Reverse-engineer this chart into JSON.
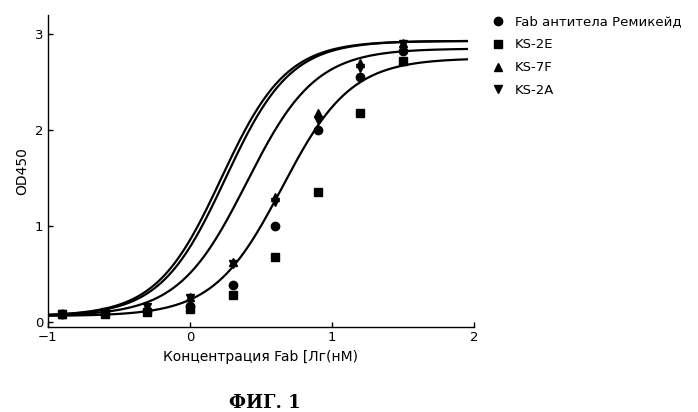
{
  "title": "ФИГ. 1",
  "xlabel": "Концентрация Fab [Лг(нМ)",
  "ylabel": "OD450",
  "xlim": [
    -1,
    2
  ],
  "ylim": [
    -0.05,
    3.2
  ],
  "xticks": [
    -1,
    0,
    1,
    2
  ],
  "yticks": [
    0,
    1,
    2,
    3
  ],
  "series": [
    {
      "label": "Fab антитела Ремикейд",
      "marker": "o",
      "color": "#000000",
      "ec50_lg": 0.4,
      "hill": 1.8,
      "ymax": 2.85,
      "ymin": 0.06,
      "data_x": [
        -0.9,
        -0.6,
        -0.3,
        0.0,
        0.3,
        0.6,
        0.9,
        1.2,
        1.5
      ],
      "data_y": [
        0.08,
        0.09,
        0.11,
        0.16,
        0.38,
        1.0,
        2.0,
        2.55,
        2.82
      ]
    },
    {
      "label": "KS-2E",
      "marker": "s",
      "color": "#000000",
      "ec50_lg": 0.65,
      "hill": 1.8,
      "ymax": 2.75,
      "ymin": 0.06,
      "data_x": [
        -0.9,
        -0.6,
        -0.3,
        0.0,
        0.3,
        0.6,
        0.9,
        1.2,
        1.5
      ],
      "data_y": [
        0.08,
        0.08,
        0.1,
        0.13,
        0.28,
        0.68,
        1.35,
        2.18,
        2.72
      ]
    },
    {
      "label": "KS-7F",
      "marker": "^",
      "color": "#000000",
      "ec50_lg": 0.25,
      "hill": 1.9,
      "ymax": 2.93,
      "ymin": 0.06,
      "data_x": [
        -0.9,
        -0.6,
        -0.3,
        0.0,
        0.3,
        0.6,
        0.9,
        1.2,
        1.5
      ],
      "data_y": [
        0.08,
        0.1,
        0.15,
        0.26,
        0.62,
        1.3,
        2.18,
        2.7,
        2.91
      ]
    },
    {
      "label": "KS-2A",
      "marker": "v",
      "color": "#000000",
      "ec50_lg": 0.22,
      "hill": 1.9,
      "ymax": 2.93,
      "ymin": 0.06,
      "data_x": [
        -0.9,
        -0.6,
        -0.3,
        0.0,
        0.3,
        0.6,
        0.9,
        1.2,
        1.5
      ],
      "data_y": [
        0.08,
        0.1,
        0.15,
        0.25,
        0.6,
        1.25,
        2.1,
        2.65,
        2.9
      ]
    }
  ],
  "background_color": "#ffffff",
  "line_color": "#000000",
  "line_width": 1.6,
  "marker_size": 6,
  "legend_fontsize": 9.5,
  "axis_fontsize": 10,
  "title_fontsize": 13
}
